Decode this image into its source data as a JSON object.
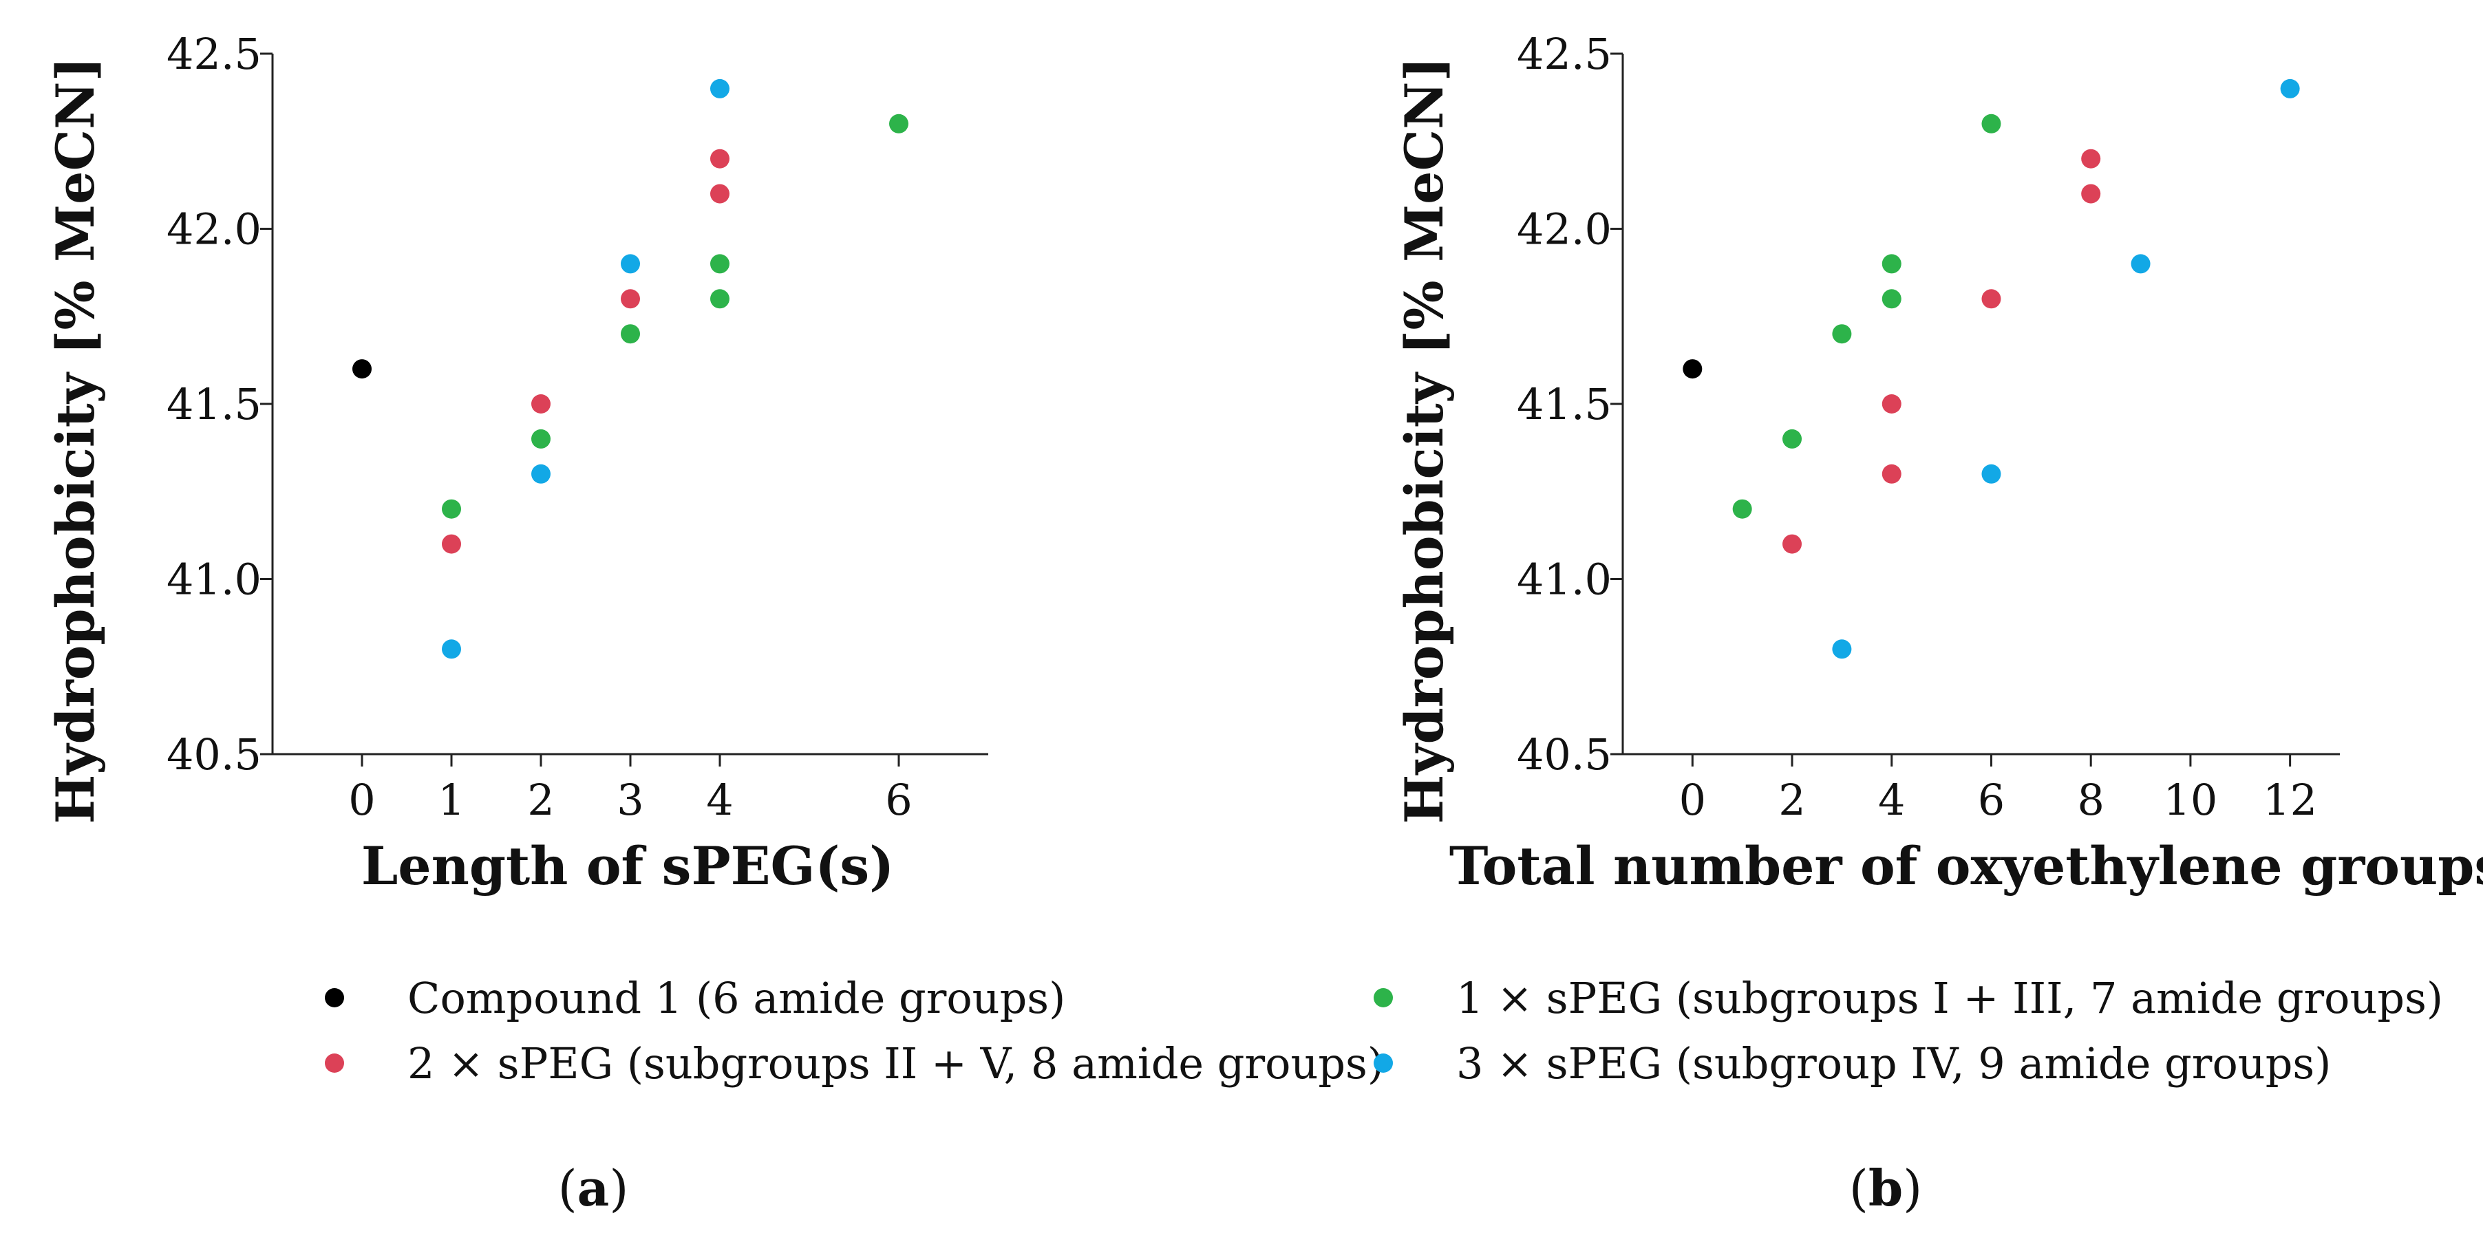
{
  "colors": {
    "compound": "#000000",
    "one_speg": "#2db34a",
    "two_speg": "#dc4157",
    "three_speg": "#12a8e6",
    "axis": "#222222"
  },
  "legend": {
    "compound": "Compound 1 (6 amide groups)",
    "one_speg": "1 × sPEG (subgroups I + III, 7 amide groups)",
    "two_speg": "2 × sPEG (subgroups II + V, 8 amide groups)",
    "three_speg": "3 × sPEG (subgroup IV, 9 amide groups)"
  },
  "chart_data": [
    {
      "type": "scatter",
      "panel": "a",
      "panel_label": {
        "open": "(",
        "letter": "a",
        "close": ")"
      },
      "xlabel": "Length of sPEG(s)",
      "ylabel": "Hydrophobicity [% MeCN]",
      "xlim": [
        -1,
        7
      ],
      "ylim": [
        40.5,
        42.5
      ],
      "xticks": [
        {
          "value": 0,
          "label": "0"
        },
        {
          "value": 1,
          "label": "1"
        },
        {
          "value": 2,
          "label": "2"
        },
        {
          "value": 3,
          "label": "3"
        },
        {
          "value": 4,
          "label": "4"
        },
        {
          "value": 6,
          "label": "6"
        }
      ],
      "yticks": [
        {
          "value": 40.5,
          "label": "40.5"
        },
        {
          "value": 41.0,
          "label": "41.0"
        },
        {
          "value": 41.5,
          "label": "41.5"
        },
        {
          "value": 42.0,
          "label": "42.0"
        },
        {
          "value": 42.5,
          "label": "42.5"
        }
      ],
      "series": [
        {
          "key": "compound",
          "points": [
            [
              0,
              41.6
            ]
          ]
        },
        {
          "key": "one_speg",
          "points": [
            [
              1,
              41.2
            ],
            [
              2,
              41.4
            ],
            [
              3,
              41.7
            ],
            [
              4,
              41.8
            ],
            [
              4,
              41.9
            ],
            [
              6,
              42.3
            ]
          ]
        },
        {
          "key": "two_speg",
          "points": [
            [
              1,
              41.1
            ],
            [
              2,
              41.5
            ],
            [
              3,
              41.8
            ],
            [
              4,
              42.1
            ],
            [
              4,
              42.2
            ]
          ]
        },
        {
          "key": "three_speg",
          "points": [
            [
              1,
              40.8
            ],
            [
              2,
              41.3
            ],
            [
              3,
              41.9
            ],
            [
              4,
              42.4
            ]
          ]
        }
      ]
    },
    {
      "type": "scatter",
      "panel": "b",
      "panel_label": {
        "open": "(",
        "letter": "b",
        "close": ")"
      },
      "xlabel": "Total number of oxyethylene groups",
      "ylabel": "Hydrophobicity [% MeCN]",
      "xlim": [
        -1.4,
        13
      ],
      "ylim": [
        40.5,
        42.5
      ],
      "xticks": [
        {
          "value": 0,
          "label": "0"
        },
        {
          "value": 2,
          "label": "2"
        },
        {
          "value": 4,
          "label": "4"
        },
        {
          "value": 6,
          "label": "6"
        },
        {
          "value": 8,
          "label": "8"
        },
        {
          "value": 10,
          "label": "10"
        },
        {
          "value": 12,
          "label": "12"
        }
      ],
      "yticks": [
        {
          "value": 40.5,
          "label": "40.5"
        },
        {
          "value": 41.0,
          "label": "41.0"
        },
        {
          "value": 41.5,
          "label": "41.5"
        },
        {
          "value": 42.0,
          "label": "42.0"
        },
        {
          "value": 42.5,
          "label": "42.5"
        }
      ],
      "series": [
        {
          "key": "compound",
          "points": [
            [
              0,
              41.6
            ]
          ]
        },
        {
          "key": "one_speg",
          "points": [
            [
              1,
              41.2
            ],
            [
              2,
              41.4
            ],
            [
              3,
              41.7
            ],
            [
              4,
              41.8
            ],
            [
              4,
              41.9
            ],
            [
              6,
              42.3
            ]
          ]
        },
        {
          "key": "two_speg",
          "points": [
            [
              2,
              41.1
            ],
            [
              4,
              41.3
            ],
            [
              4,
              41.5
            ],
            [
              6,
              41.8
            ],
            [
              8,
              42.1
            ],
            [
              8,
              42.2
            ]
          ]
        },
        {
          "key": "three_speg",
          "points": [
            [
              3,
              40.8
            ],
            [
              6,
              41.3
            ],
            [
              9,
              41.9
            ],
            [
              12,
              42.4
            ]
          ]
        }
      ]
    }
  ]
}
